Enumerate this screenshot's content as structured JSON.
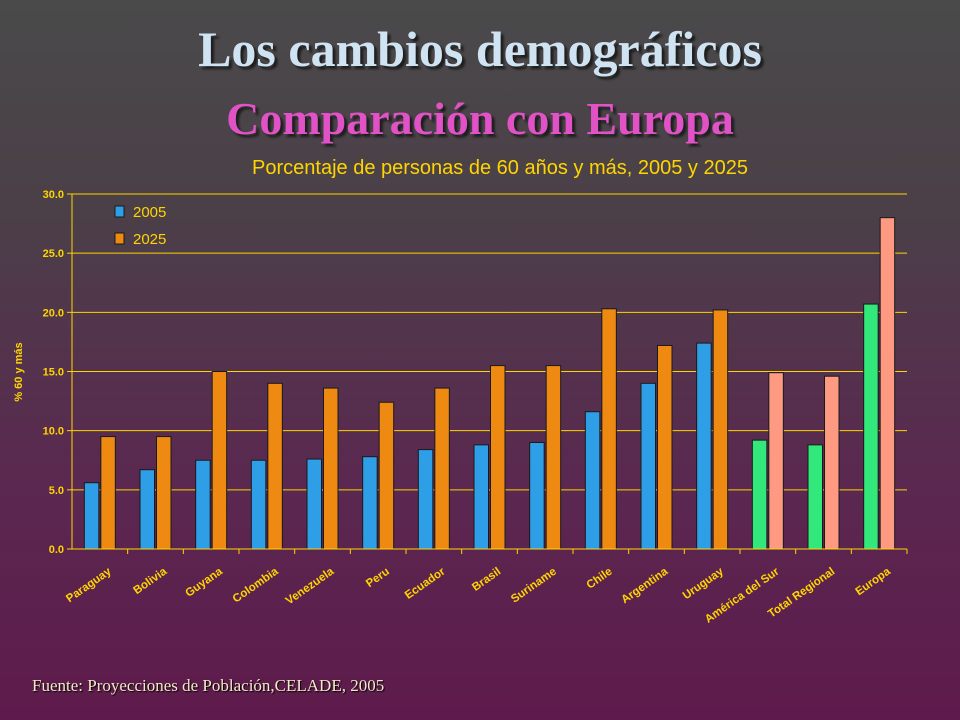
{
  "slide": {
    "title": "Los cambios demográficos",
    "subtitle": "Comparación con Europa",
    "source": "Fuente: Proyecciones de Población,CELADE, 2005"
  },
  "colors": {
    "bar_2005": "#2e9ee6",
    "bar_2025": "#ee8a12",
    "bar_2005_aggregate": "#33e87a",
    "bar_2025_aggregate": "#ff9a82",
    "axis_text": "#ffd500",
    "gridline": "#ffd500"
  },
  "chart_data": {
    "type": "bar",
    "title": "Porcentaje de personas de 60 años y más, 2005 y 2025",
    "ylabel": "% 60 y más",
    "xlabel": "",
    "ylim": [
      0,
      30
    ],
    "yticks": [
      "0.0",
      "5.0",
      "10.0",
      "15.0",
      "20.0",
      "25.0",
      "30.0"
    ],
    "grid": true,
    "legend_position": "top-left",
    "categories": [
      "Paraguay",
      "Bolivia",
      "Guyana",
      "Colombia",
      "Venezuela",
      "Peru",
      "Ecuador",
      "Brasil",
      "Suriname",
      "Chile",
      "Argentina",
      "Uruguay",
      "América del Sur",
      "Total Regional",
      "Europa"
    ],
    "series": [
      {
        "name": "2005",
        "values": [
          5.6,
          6.7,
          7.5,
          7.5,
          7.6,
          7.8,
          8.4,
          8.8,
          9.0,
          11.6,
          14.0,
          17.4,
          9.2,
          8.8,
          20.7
        ]
      },
      {
        "name": "2025",
        "values": [
          9.5,
          9.5,
          15.0,
          14.0,
          13.6,
          12.4,
          13.6,
          15.5,
          15.5,
          20.3,
          17.2,
          20.2,
          14.9,
          14.6,
          28.0
        ]
      }
    ],
    "aggregate_categories": [
      "América del Sur",
      "Total Regional",
      "Europa"
    ]
  }
}
